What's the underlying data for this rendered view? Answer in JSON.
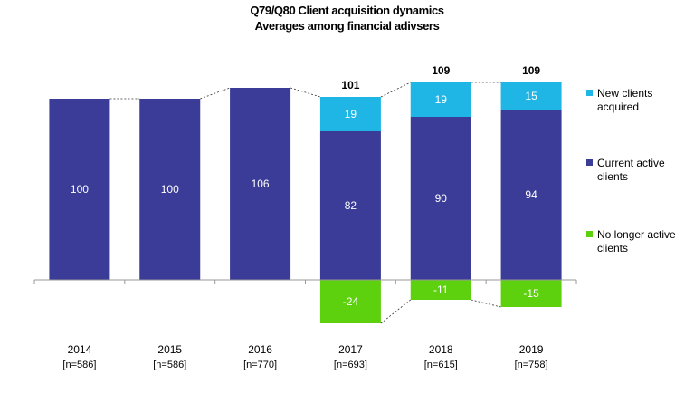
{
  "title": "Q79/Q80 Client acquisition dynamics",
  "subtitle": "Averages among financial adivsers",
  "colors": {
    "new": "#1fb6e6",
    "current": "#3a3c97",
    "lost": "#5ed10f"
  },
  "chart_data": {
    "type": "bar",
    "categories": [
      "2014",
      "2015",
      "2016",
      "2017",
      "2018",
      "2019"
    ],
    "sample_sizes": [
      "[n=586]",
      "[n=586]",
      "[n=770]",
      "[n=693]",
      "[n=615]",
      "[n=758]"
    ],
    "series": [
      {
        "name": "New clients acquired",
        "values": [
          null,
          null,
          null,
          19,
          19,
          15
        ]
      },
      {
        "name": "Current active clients",
        "values": [
          100,
          100,
          106,
          82,
          90,
          94
        ]
      },
      {
        "name": "No longer active clients",
        "values": [
          null,
          null,
          null,
          -24,
          -11,
          -15
        ]
      }
    ],
    "totals": [
      null,
      null,
      null,
      101,
      109,
      109
    ],
    "ylim": [
      -30,
      120
    ],
    "grid": false,
    "legend_position": "right"
  }
}
